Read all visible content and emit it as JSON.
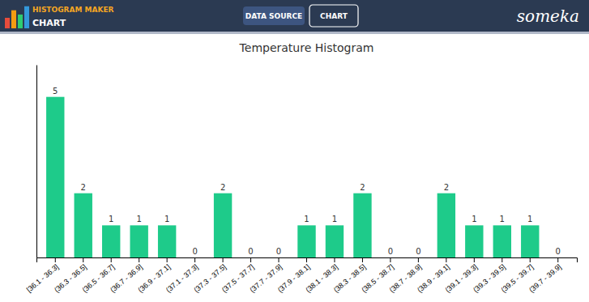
{
  "chart_data": {
    "type": "bar",
    "title": "Temperature Histogram",
    "categories": [
      "[36.1 - 36.3]",
      "(36.3 - 36.5]",
      "(36.5 - 36.7]",
      "(36.7 - 36.9]",
      "(36.9 - 37.1]",
      "(37.1 - 37.3]",
      "(37.3 - 37.5]",
      "(37.5 - 37.7]",
      "(37.7 - 37.9]",
      "(37.9 - 38.1]",
      "(38.1 - 38.3]",
      "(38.3 - 38.5]",
      "(38.5 - 38.7]",
      "(38.7 - 38.9]",
      "(38.9 - 39.1]",
      "(39.1 - 39.3]",
      "(39.3 - 39.5]",
      "(39.5 - 39.7]",
      "(39.7 - 39.9]"
    ],
    "values": [
      5,
      2,
      1,
      1,
      1,
      0,
      2,
      0,
      0,
      1,
      1,
      2,
      0,
      0,
      2,
      1,
      1,
      1,
      0
    ],
    "color": "#1ecb8a",
    "ylim": [
      0,
      6
    ],
    "grid": false,
    "data_labels": true,
    "tick_labels": "x",
    "annotations": [
      "HISTOGRAM MAKER",
      "CHART",
      "DATA SOURCE",
      "CHART",
      "someka"
    ]
  }
}
